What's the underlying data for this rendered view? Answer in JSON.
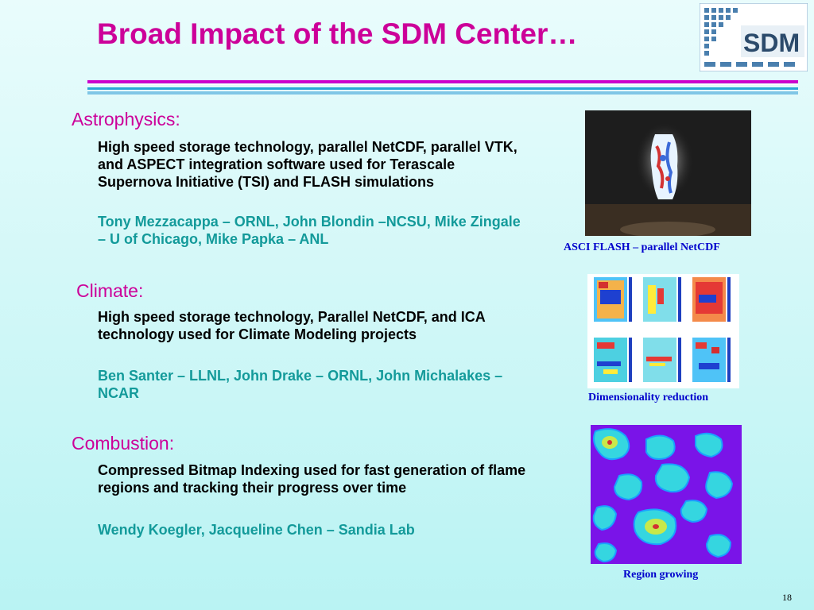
{
  "slide": {
    "title": "Broad Impact of the SDM Center…",
    "page_number": "18",
    "logo_text": "SDM"
  },
  "sections": [
    {
      "heading": "Astrophysics:",
      "description": "High speed storage technology, parallel NetCDF, parallel VTK, and ASPECT integration software used for Terascale Supernova Initiative (TSI) and FLASH simulations",
      "people": "Tony Mezzacappa – ORNL, John Blondin –NCSU, Mike Zingale – U of Chicago, Mike Papka – ANL"
    },
    {
      "heading": "Climate:",
      "description": "High speed storage technology, Parallel NetCDF, and ICA technology used for Climate Modeling projects",
      "people": "Ben Santer – LLNL, John Drake – ORNL, John Michalakes – NCAR"
    },
    {
      "heading": "Combustion:",
      "description": "Compressed Bitmap Indexing used for fast generation of flame regions and tracking their progress over time",
      "people": "Wendy Koegler, Jacqueline Chen – Sandia Lab"
    }
  ],
  "figures": [
    {
      "caption": "ASCI FLASH – parallel NetCDF"
    },
    {
      "caption": "Dimensionality reduction"
    },
    {
      "caption": "Region growing"
    }
  ],
  "colors": {
    "title": "#cc0099",
    "heading": "#cc0099",
    "people": "#139a9a",
    "caption": "#0000cc",
    "accent_rule": "#cc00cc",
    "blue_rule": "#2aa6d6"
  }
}
